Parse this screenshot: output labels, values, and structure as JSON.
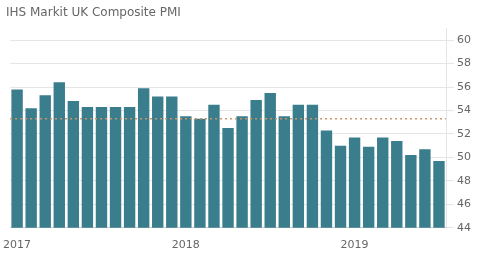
{
  "chart_data": {
    "type": "bar",
    "title": "IHS Markit UK Composite PMI",
    "categories": [
      "2017",
      null,
      null,
      null,
      null,
      null,
      null,
      null,
      null,
      null,
      null,
      null,
      "2018",
      null,
      null,
      null,
      null,
      null,
      null,
      null,
      null,
      null,
      null,
      null,
      "2019",
      null,
      null,
      null,
      null,
      null,
      null
    ],
    "values": [
      55.8,
      54.2,
      55.3,
      56.4,
      54.8,
      54.3,
      54.3,
      54.3,
      54.3,
      55.9,
      55.2,
      55.2,
      53.5,
      53.3,
      54.5,
      52.5,
      53.5,
      54.9,
      55.5,
      53.5,
      54.5,
      54.5,
      52.3,
      51.0,
      51.7,
      50.9,
      51.7,
      51.4,
      50.2,
      50.7,
      49.7
    ],
    "color": "#3a7d8c",
    "ylim": [
      44,
      61
    ],
    "yticks": [
      44,
      46,
      48,
      50,
      52,
      54,
      56,
      58,
      60
    ],
    "grid": true,
    "reference_line": {
      "value": 53.3,
      "color": "#c8956b"
    }
  }
}
